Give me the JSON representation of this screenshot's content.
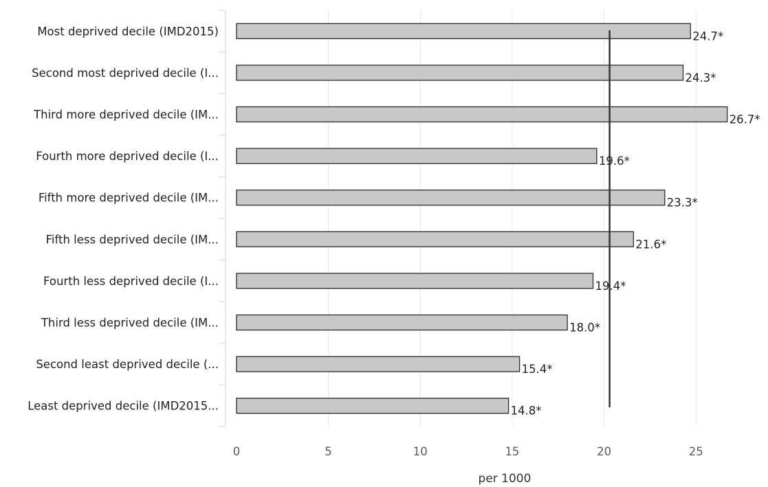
{
  "chart_data": {
    "type": "bar",
    "orientation": "horizontal",
    "categories": [
      "Most deprived decile (IMD2015)",
      "Second most deprived decile (I...",
      "Third more deprived decile (IM...",
      "Fourth more deprived decile (I...",
      "Fifth more deprived decile (IM...",
      "Fifth less deprived decile (IM...",
      "Fourth less deprived decile (I...",
      "Third less deprived decile (IM...",
      "Second least deprived decile (...",
      "Least deprived decile (IMD2015..."
    ],
    "values": [
      24.7,
      24.3,
      26.7,
      19.6,
      23.3,
      21.6,
      19.4,
      18.0,
      15.4,
      14.8
    ],
    "data_labels": [
      "24.7*",
      "24.3*",
      "26.7*",
      "19.6*",
      "23.3*",
      "21.6*",
      "19.4*",
      "18.0*",
      "15.4*",
      "14.8*"
    ],
    "reference_line": 20.3,
    "xlabel": "per 1000",
    "ylabel": "",
    "xlim": [
      0,
      28
    ],
    "xticks": [
      0,
      5,
      10,
      15,
      20,
      25
    ],
    "tick_labels": [
      "0",
      "5",
      "10",
      "15",
      "20",
      "25"
    ],
    "grid": "vertical",
    "legend": "none",
    "colors": {
      "bar_fill": "#c8c8c8",
      "bar_stroke": "#2b2b2b",
      "reference_line": "#333333",
      "grid": "#e6e6e6",
      "axis": "#ccd6eb"
    }
  }
}
